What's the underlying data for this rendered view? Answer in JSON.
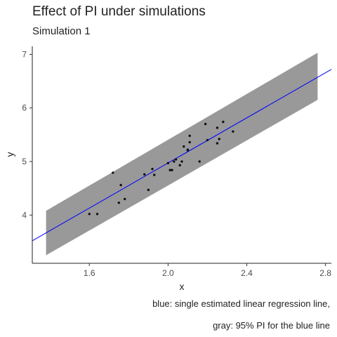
{
  "chart_data": {
    "type": "scatter",
    "title": "Effect of PI under simulations",
    "subtitle": "Simulation 1",
    "xlabel": "x",
    "ylabel": "y",
    "xlim": [
      1.31,
      2.83
    ],
    "ylim": [
      3.1,
      7.15
    ],
    "x_ticks": [
      1.6,
      2.0,
      2.4,
      2.8
    ],
    "x_tick_labels": [
      "1.6",
      "2.0",
      "2.4",
      "2.8"
    ],
    "y_ticks": [
      4,
      5,
      6,
      7
    ],
    "y_tick_labels": [
      "4",
      "5",
      "6",
      "7"
    ],
    "grid": false,
    "points": [
      {
        "x": 1.6,
        "y": 4.02
      },
      {
        "x": 1.64,
        "y": 4.02
      },
      {
        "x": 1.72,
        "y": 4.79
      },
      {
        "x": 1.75,
        "y": 4.23
      },
      {
        "x": 1.76,
        "y": 4.56
      },
      {
        "x": 1.78,
        "y": 4.3
      },
      {
        "x": 1.88,
        "y": 4.76
      },
      {
        "x": 1.9,
        "y": 4.47
      },
      {
        "x": 1.92,
        "y": 4.86
      },
      {
        "x": 1.93,
        "y": 4.75
      },
      {
        "x": 2.0,
        "y": 4.97
      },
      {
        "x": 2.01,
        "y": 4.84
      },
      {
        "x": 2.02,
        "y": 4.84
      },
      {
        "x": 2.03,
        "y": 5.0
      },
      {
        "x": 2.04,
        "y": 5.04
      },
      {
        "x": 2.06,
        "y": 4.93
      },
      {
        "x": 2.07,
        "y": 5.0
      },
      {
        "x": 2.08,
        "y": 5.28
      },
      {
        "x": 2.1,
        "y": 5.21
      },
      {
        "x": 2.1,
        "y": 5.22
      },
      {
        "x": 2.11,
        "y": 5.48
      },
      {
        "x": 2.11,
        "y": 5.36
      },
      {
        "x": 2.16,
        "y": 5.0
      },
      {
        "x": 2.19,
        "y": 5.7
      },
      {
        "x": 2.2,
        "y": 5.4
      },
      {
        "x": 2.25,
        "y": 5.63
      },
      {
        "x": 2.25,
        "y": 5.34
      },
      {
        "x": 2.26,
        "y": 5.42
      },
      {
        "x": 2.28,
        "y": 5.74
      },
      {
        "x": 2.33,
        "y": 5.56
      }
    ],
    "regression_line": {
      "x": [
        1.31,
        2.83
      ],
      "y": [
        3.52,
        6.72
      ],
      "color": "#0000ff",
      "label": "single estimated linear regression line"
    },
    "prediction_interval": {
      "x": [
        1.38,
        2.76
      ],
      "lower": [
        3.25,
        6.15
      ],
      "upper": [
        4.08,
        7.03
      ],
      "color": "#999999",
      "label": "95% PI for the blue line"
    }
  },
  "captions": {
    "line1": "blue: single estimated linear regression line,",
    "line2": "gray: 95% PI for the blue line"
  }
}
